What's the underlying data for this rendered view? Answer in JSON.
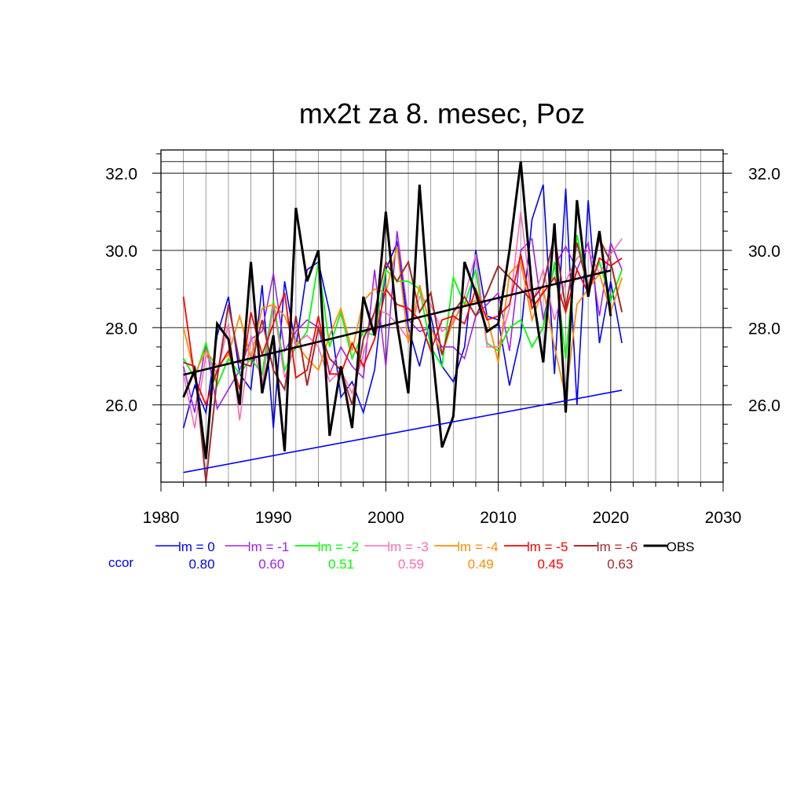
{
  "chart_data": {
    "type": "line",
    "title": "mx2t za 8. mesec, Poz",
    "xlabel": "",
    "ylabel": "",
    "xlim": [
      1980,
      2030
    ],
    "ylim": [
      24.0,
      32.6
    ],
    "x_ticks": [
      "1980",
      "1990",
      "2000",
      "2010",
      "2020",
      "2030"
    ],
    "y_ticks": [
      "26.0",
      "28.0",
      "30.0",
      "32.0"
    ],
    "grid": true,
    "legend_position": "bottom",
    "ccor_label": "ccor",
    "x": [
      1982,
      1983,
      1984,
      1985,
      1986,
      1987,
      1988,
      1989,
      1990,
      1991,
      1992,
      1993,
      1994,
      1995,
      1996,
      1997,
      1998,
      1999,
      2000,
      2001,
      2002,
      2003,
      2004,
      2005,
      2006,
      2007,
      2008,
      2009,
      2010,
      2011,
      2012,
      2013,
      2014,
      2015,
      2016,
      2017,
      2018,
      2019,
      2020,
      2021
    ],
    "series": [
      {
        "name": "lm = 0",
        "color": "#0000ff",
        "ccor": "0.80",
        "width": 1.6,
        "values": [
          25.4,
          26.5,
          25.8,
          27.8,
          28.8,
          26.8,
          26.4,
          29.1,
          25.4,
          29.2,
          27.5,
          29.5,
          29.7,
          28.4,
          26.2,
          26.6,
          25.8,
          26.9,
          29.5,
          30.2,
          28.0,
          27.0,
          28.3,
          27.0,
          26.6,
          27.5,
          30.0,
          28.3,
          28.2,
          26.5,
          27.8,
          30.8,
          31.7,
          26.8,
          31.6,
          26.0,
          31.3,
          27.6,
          29.2,
          27.6
        ]
      },
      {
        "name": "lm = -1",
        "color": "#a020f0",
        "ccor": "0.60",
        "width": 1.6,
        "values": [
          27.0,
          25.8,
          27.6,
          25.9,
          26.4,
          26.9,
          27.7,
          27.9,
          29.4,
          27.4,
          27.9,
          28.2,
          28.0,
          26.8,
          27.5,
          27.0,
          26.7,
          29.5,
          27.0,
          30.5,
          28.2,
          27.9,
          28.0,
          27.5,
          27.5,
          27.2,
          28.3,
          28.6,
          28.9,
          27.4,
          30.0,
          30.3,
          28.2,
          29.6,
          30.1,
          29.5,
          30.2,
          28.3,
          30.2,
          29.5
        ]
      },
      {
        "name": "lm = -2",
        "color": "#00ff00",
        "ccor": "0.51",
        "width": 1.8,
        "values": [
          27.2,
          26.7,
          27.6,
          26.5,
          27.2,
          26.8,
          27.2,
          26.8,
          28.7,
          26.9,
          27.5,
          27.9,
          29.7,
          27.5,
          28.4,
          27.2,
          27.9,
          27.8,
          29.5,
          29.2,
          29.2,
          29.0,
          27.5,
          27.0,
          29.3,
          28.6,
          29.5,
          27.6,
          27.4,
          28.0,
          28.2,
          27.5,
          28.0,
          29.7,
          27.2,
          30.4,
          29.0,
          29.7,
          28.7,
          29.5
        ]
      },
      {
        "name": "lm = -3",
        "color": "#ff69b4",
        "ccor": "0.59",
        "width": 1.6,
        "values": [
          26.8,
          25.4,
          27.3,
          26.8,
          28.1,
          25.6,
          27.8,
          26.5,
          28.6,
          26.7,
          27.6,
          27.8,
          27.5,
          26.6,
          26.9,
          26.3,
          27.3,
          28.4,
          28.4,
          28.1,
          27.7,
          28.8,
          28.6,
          27.9,
          28.1,
          28.8,
          29.9,
          27.5,
          27.5,
          28.5,
          31.0,
          28.6,
          29.5,
          28.2,
          29.2,
          29.8,
          30.0,
          29.4,
          29.9,
          30.3
        ]
      },
      {
        "name": "lm = -4",
        "color": "#ff8c00",
        "ccor": "0.49",
        "width": 1.8,
        "values": [
          28.0,
          26.8,
          27.4,
          27.0,
          27.3,
          28.3,
          27.2,
          28.5,
          28.6,
          28.3,
          27.6,
          27.2,
          26.9,
          27.8,
          28.5,
          27.4,
          28.7,
          29.0,
          28.9,
          30.1,
          27.6,
          29.1,
          28.0,
          27.3,
          28.2,
          28.6,
          28.7,
          28.3,
          27.1,
          29.4,
          29.7,
          28.2,
          29.0,
          27.5,
          26.2,
          28.6,
          29.0,
          29.4,
          28.4,
          29.3
        ]
      },
      {
        "name": "lm = -5",
        "color": "#ff0000",
        "ccor": "0.45",
        "width": 1.8,
        "values": [
          28.8,
          26.7,
          26.0,
          26.9,
          27.4,
          26.4,
          28.4,
          27.3,
          28.1,
          28.9,
          26.7,
          26.9,
          28.3,
          26.8,
          26.8,
          27.6,
          27.0,
          27.7,
          29.0,
          28.6,
          28.5,
          28.2,
          27.4,
          28.2,
          28.3,
          28.1,
          29.0,
          28.2,
          28.3,
          28.6,
          29.9,
          28.5,
          28.9,
          29.3,
          28.4,
          29.5,
          28.9,
          29.8,
          29.6,
          29.8
        ]
      },
      {
        "name": "lm = -6",
        "color": "#a52a2a",
        "ccor": "0.63",
        "width": 2.0,
        "values": [
          27.1,
          27.0,
          24.0,
          26.7,
          28.6,
          27.1,
          27.0,
          28.2,
          26.9,
          26.4,
          28.3,
          26.5,
          28.0,
          27.2,
          26.9,
          26.0,
          27.7,
          28.4,
          29.7,
          29.2,
          29.7,
          28.4,
          28.9,
          27.3,
          28.4,
          28.8,
          28.3,
          28.9,
          29.6,
          29.3,
          29.0,
          28.7,
          29.1,
          30.4,
          28.5,
          30.2,
          29.0,
          30.3,
          29.7,
          28.4
        ]
      },
      {
        "name": "OBS",
        "color": "#000000",
        "ccor": "",
        "width": 3.0,
        "values": [
          26.2,
          26.9,
          24.6,
          28.1,
          27.7,
          26.0,
          29.7,
          26.3,
          27.8,
          24.8,
          31.1,
          29.2,
          30.0,
          25.2,
          27.0,
          25.4,
          28.8,
          27.8,
          31.0,
          28.1,
          26.3,
          31.7,
          27.8,
          24.9,
          25.7,
          29.7,
          28.9,
          27.9,
          28.1,
          30.0,
          32.3,
          29.0,
          27.1,
          30.7,
          25.8,
          31.3,
          28.8,
          30.5,
          28.3,
          null
        ]
      }
    ],
    "trend_lines": [
      {
        "color": "#000000",
        "width": 2.6,
        "x": [
          1982,
          2020
        ],
        "y": [
          26.78,
          29.48
        ]
      },
      {
        "color": "#0000ff",
        "width": 1.6,
        "x": [
          1982,
          2021
        ],
        "y": [
          24.25,
          26.38
        ]
      }
    ],
    "reference_lines": [
      32.3
    ]
  }
}
